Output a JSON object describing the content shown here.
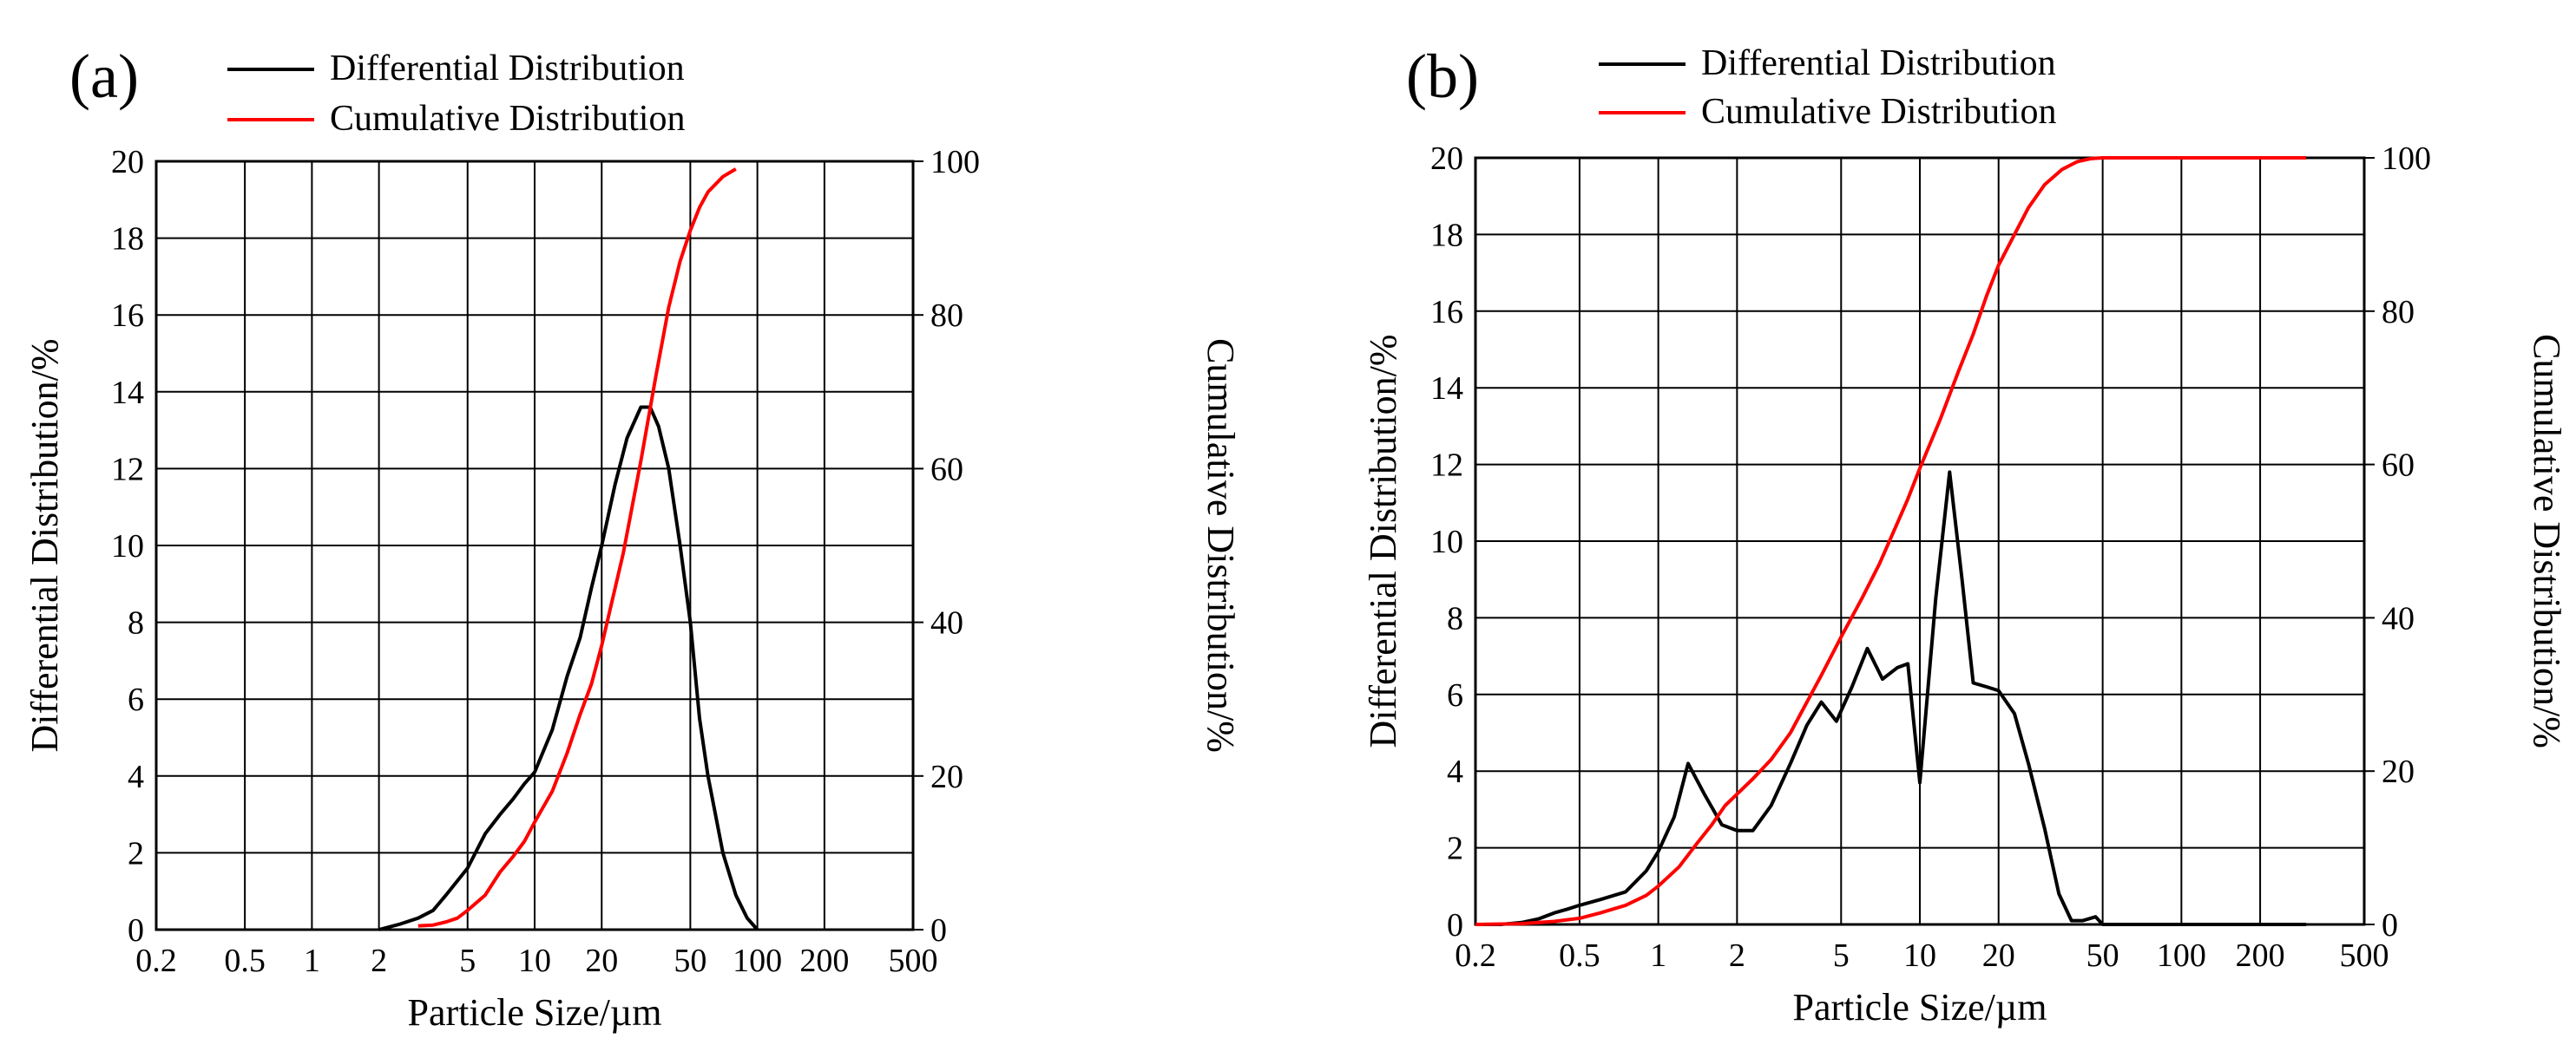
{
  "colors": {
    "differential": "#000000",
    "cumulative": "#ff0000",
    "grid": "#000000"
  },
  "chart_data": [
    {
      "type": "line",
      "panel_label": "(a)",
      "legend": [
        "Differential Distribution",
        "Cumulative Distribution"
      ],
      "xlabel": "Particle Size/µm",
      "ylabel_left": "Differential Distribution/%",
      "ylabel_right": "Cumulative Distribution/%",
      "xscale": "log",
      "xlim": [
        0.2,
        500
      ],
      "ylim_left": [
        0,
        20
      ],
      "ylim_right": [
        0,
        100
      ],
      "xticks": [
        0.2,
        0.5,
        1,
        2,
        5,
        10,
        20,
        50,
        100,
        200,
        500
      ],
      "xtick_labels": [
        "0.2",
        "0.5",
        "1",
        "2",
        "5",
        "10",
        "20",
        "50",
        "100",
        "200",
        "500"
      ],
      "yticks_left": [
        0,
        2,
        4,
        6,
        8,
        10,
        12,
        14,
        16,
        18,
        20
      ],
      "yticks_left_labels": [
        "0",
        "2",
        "4",
        "6",
        "8",
        "10",
        "12",
        "14",
        "16",
        "18",
        "20"
      ],
      "yticks_right": [
        0,
        20,
        40,
        60,
        80,
        100
      ],
      "yticks_right_labels": [
        "0",
        "20",
        "40",
        "60",
        "80",
        "100"
      ],
      "grid": true,
      "series": [
        {
          "name": "Differential Distribution",
          "axis": "left",
          "x": [
            2.0,
            2.5,
            3.0,
            3.5,
            4.0,
            5.0,
            6.0,
            7.0,
            8.0,
            9.0,
            10.0,
            12.0,
            14.0,
            16.0,
            18.0,
            20.0,
            23.0,
            26.0,
            30.0,
            33.0,
            36.0,
            40.0,
            45.0,
            50.0,
            55.0,
            60.0,
            70.0,
            80.0,
            90.0,
            100.0
          ],
          "y": [
            0.0,
            0.15,
            0.3,
            0.5,
            0.9,
            1.6,
            2.5,
            3.0,
            3.4,
            3.8,
            4.1,
            5.2,
            6.6,
            7.6,
            8.9,
            10.0,
            11.6,
            12.8,
            13.6,
            13.6,
            13.1,
            12.0,
            10.0,
            8.0,
            5.5,
            4.0,
            2.0,
            0.9,
            0.3,
            0.0
          ]
        },
        {
          "name": "Cumulative Distribution",
          "axis": "right",
          "x": [
            3.0,
            3.5,
            4.0,
            4.5,
            5.0,
            6.0,
            7.0,
            8.0,
            9.0,
            10.0,
            12.0,
            14.0,
            16.0,
            18.0,
            20.0,
            25.0,
            30.0,
            35.0,
            40.0,
            45.0,
            50.0,
            55.0,
            60.0,
            70.0,
            80.0
          ],
          "y": [
            0.5,
            0.6,
            1.0,
            1.5,
            2.5,
            4.5,
            7.5,
            9.5,
            11.5,
            14.0,
            18.0,
            23.0,
            28.0,
            32.0,
            37.0,
            49.0,
            61.0,
            72.0,
            81.0,
            87.0,
            91.0,
            94.0,
            96.0,
            98.0,
            99.0
          ]
        }
      ]
    },
    {
      "type": "line",
      "panel_label": "(b)",
      "legend": [
        "Differential Distribution",
        "Cumulative Distribution"
      ],
      "xlabel": "Particle Size/µm",
      "ylabel_left": "Differential Distribution/%",
      "ylabel_right": "Cumulative Distribution/%",
      "xscale": "log",
      "xlim": [
        0.2,
        500
      ],
      "ylim_left": [
        0,
        20
      ],
      "ylim_right": [
        0,
        100
      ],
      "xticks": [
        0.2,
        0.5,
        1,
        2,
        5,
        10,
        20,
        50,
        100,
        200,
        500
      ],
      "xtick_labels": [
        "0.2",
        "0.5",
        "1",
        "2",
        "5",
        "10",
        "20",
        "50",
        "100",
        "200",
        "500"
      ],
      "yticks_left": [
        0,
        2,
        4,
        6,
        8,
        10,
        12,
        14,
        16,
        18,
        20
      ],
      "yticks_left_labels": [
        "0",
        "2",
        "4",
        "6",
        "8",
        "10",
        "12",
        "14",
        "16",
        "18",
        "20"
      ],
      "yticks_right": [
        0,
        20,
        40,
        60,
        80,
        100
      ],
      "yticks_right_labels": [
        "0",
        "20",
        "40",
        "60",
        "80",
        "100"
      ],
      "grid": true,
      "series": [
        {
          "name": "Differential Distribution",
          "axis": "left",
          "x": [
            0.2,
            0.25,
            0.3,
            0.35,
            0.4,
            0.45,
            0.5,
            0.6,
            0.75,
            0.9,
            1.0,
            1.15,
            1.3,
            1.5,
            1.75,
            2.0,
            2.3,
            2.7,
            3.2,
            3.7,
            4.2,
            4.8,
            5.5,
            6.3,
            7.2,
            8.2,
            9.0,
            10.0,
            11.5,
            13.0,
            14.5,
            16.0,
            18.0,
            20.0,
            23.0,
            26.0,
            30.0,
            34.0,
            38.0,
            42.0,
            47.0,
            50.0,
            60.0,
            100.0,
            200.0,
            300.0
          ],
          "y": [
            0.0,
            0.0,
            0.05,
            0.15,
            0.3,
            0.4,
            0.5,
            0.65,
            0.85,
            1.4,
            1.9,
            2.8,
            4.2,
            3.4,
            2.6,
            2.45,
            2.45,
            3.1,
            4.2,
            5.2,
            5.8,
            5.3,
            6.2,
            7.2,
            6.4,
            6.7,
            6.8,
            3.7,
            8.5,
            11.8,
            9.0,
            6.3,
            6.2,
            6.1,
            5.5,
            4.2,
            2.5,
            0.8,
            0.1,
            0.1,
            0.2,
            0.0,
            0.0,
            0.0,
            0.0,
            0.0
          ]
        },
        {
          "name": "Cumulative Distribution",
          "axis": "right",
          "x": [
            0.2,
            0.3,
            0.4,
            0.5,
            0.6,
            0.75,
            0.9,
            1.0,
            1.2,
            1.4,
            1.6,
            1.8,
            2.0,
            2.3,
            2.7,
            3.2,
            3.7,
            4.2,
            5.0,
            6.0,
            7.0,
            8.0,
            9.0,
            10.0,
            12.0,
            14.0,
            16.0,
            18.0,
            20.0,
            23.0,
            26.0,
            30.0,
            35.0,
            40.0,
            45.0,
            50.0,
            100.0,
            200.0,
            300.0
          ],
          "y": [
            0.0,
            0.1,
            0.4,
            0.8,
            1.5,
            2.5,
            3.8,
            5.0,
            7.5,
            10.5,
            13.0,
            15.5,
            17.0,
            19.0,
            21.5,
            25.0,
            29.0,
            32.5,
            37.5,
            42.5,
            47.0,
            51.5,
            55.5,
            59.5,
            66.0,
            72.0,
            77.0,
            82.0,
            86.0,
            90.0,
            93.5,
            96.5,
            98.5,
            99.5,
            99.9,
            100.0,
            100.0,
            100.0,
            100.0
          ]
        }
      ]
    }
  ]
}
